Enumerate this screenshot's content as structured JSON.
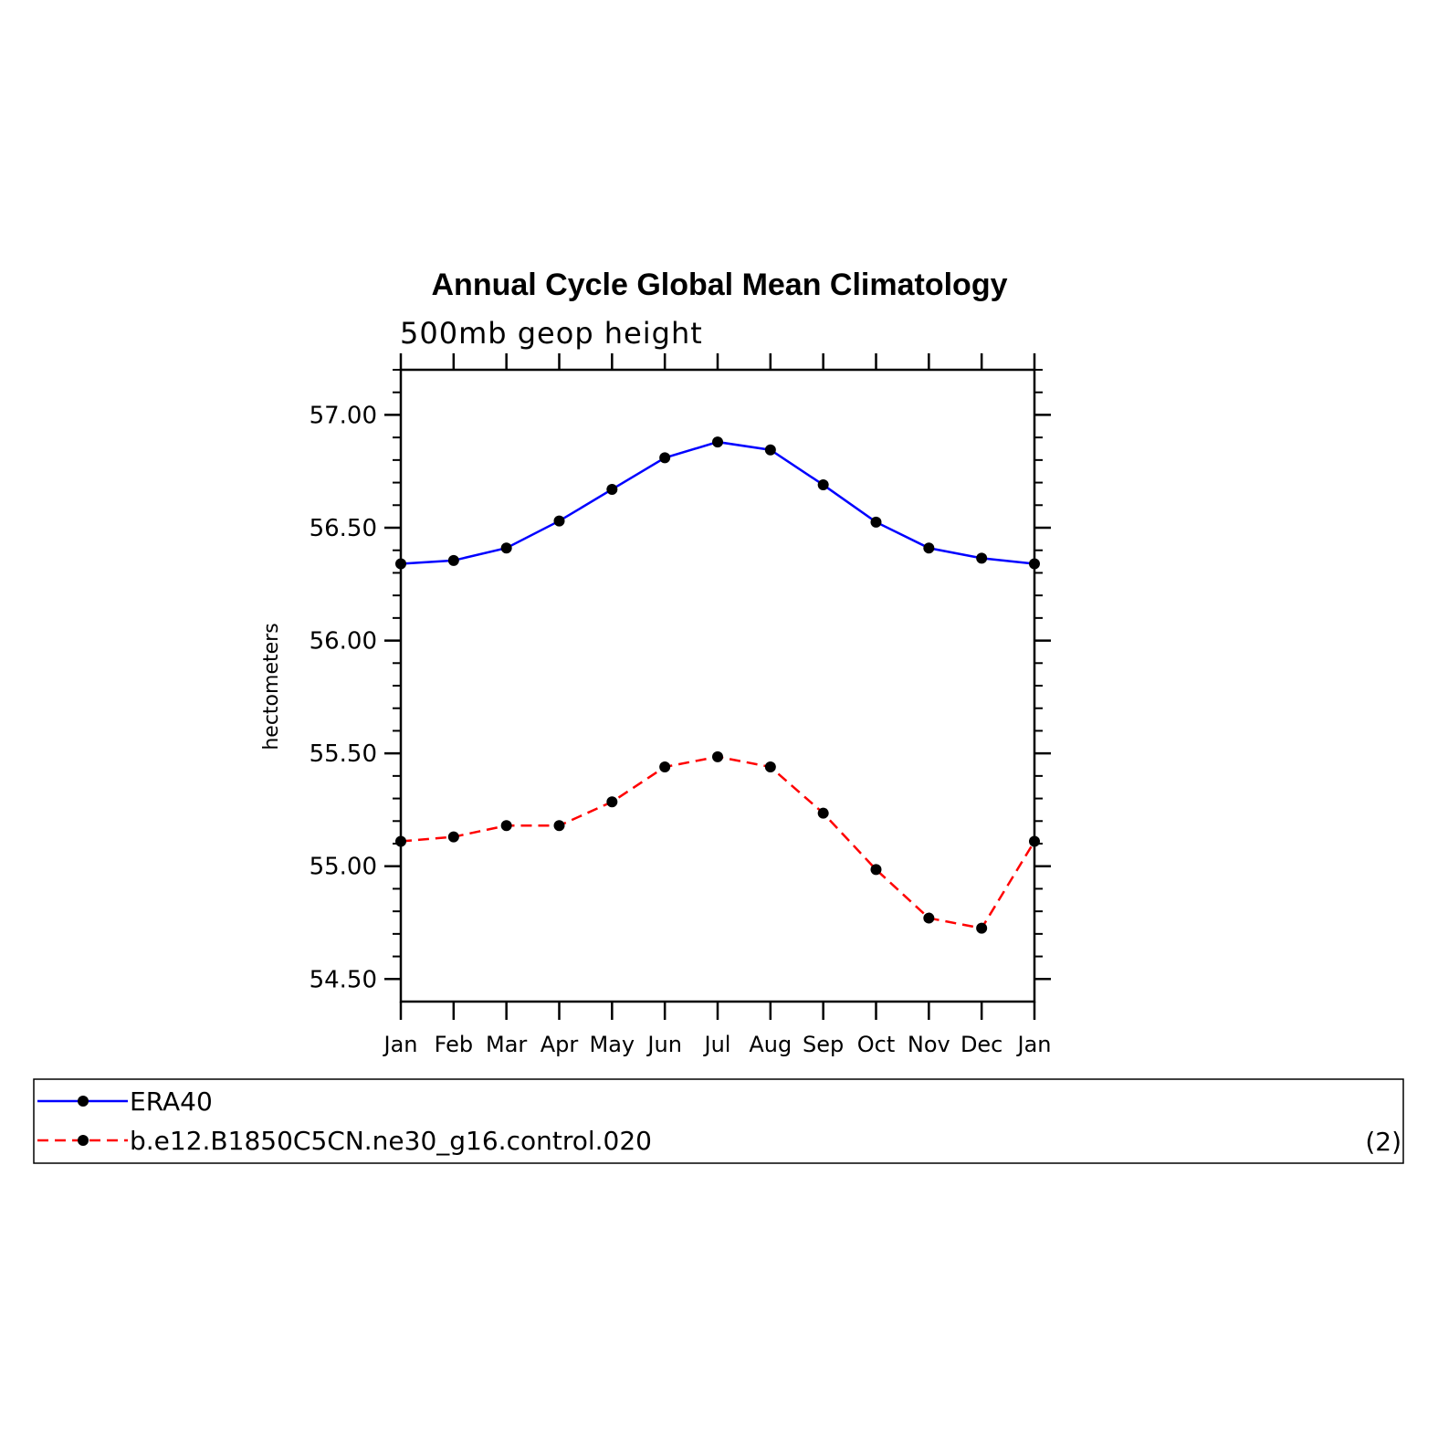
{
  "chart_data": {
    "type": "line",
    "title": "Annual Cycle Global Mean Climatology",
    "subtitle": "500mb geop height",
    "ylabel": "hectometers",
    "xlabel": "",
    "categories": [
      "Jan",
      "Feb",
      "Mar",
      "Apr",
      "May",
      "Jun",
      "Jul",
      "Aug",
      "Sep",
      "Oct",
      "Nov",
      "Dec",
      "Jan"
    ],
    "ylim": [
      54.4,
      57.2
    ],
    "yticks": [
      54.5,
      55.0,
      55.5,
      56.0,
      56.5,
      57.0
    ],
    "ytick_labels": [
      "54.50",
      "55.00",
      "55.50",
      "56.00",
      "56.50",
      "57.00"
    ],
    "grid": false,
    "series": [
      {
        "name": "ERA40",
        "color": "#0000ff",
        "dash": "solid",
        "values": [
          56.34,
          56.355,
          56.41,
          56.53,
          56.67,
          56.81,
          56.88,
          56.845,
          56.69,
          56.525,
          56.41,
          56.365,
          56.34
        ]
      },
      {
        "name": "b.e12.B1850C5CN.ne30_g16.control.020",
        "color": "#ff0000",
        "dash": "dashed",
        "values": [
          55.11,
          55.13,
          55.18,
          55.18,
          55.285,
          55.44,
          55.485,
          55.44,
          55.235,
          54.985,
          54.77,
          54.725,
          55.11
        ]
      }
    ],
    "legend": {
      "placement": "bottom",
      "note": "(2)"
    }
  }
}
